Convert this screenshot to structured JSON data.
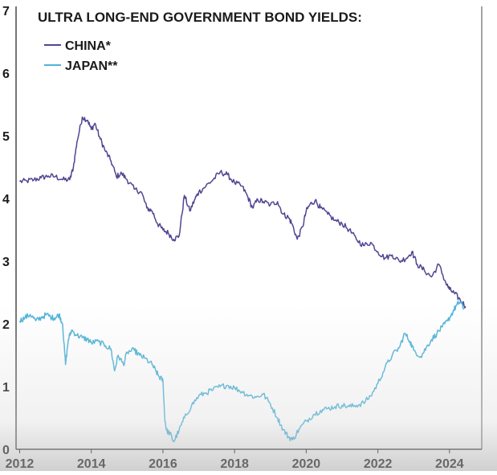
{
  "chart_data": {
    "type": "line",
    "title": "ULTRA LONG-END GOVERNMENT BOND YIELDS:",
    "xlabel": "",
    "ylabel": "",
    "xlim": [
      2011.9,
      2024.9
    ],
    "ylim": [
      0,
      7
    ],
    "x_ticks": [
      "2012",
      "2014",
      "2016",
      "2018",
      "2020",
      "2022",
      "2024"
    ],
    "y_ticks": [
      "0",
      "1",
      "2",
      "3",
      "4",
      "5",
      "6",
      "7"
    ],
    "legend_position": "top-left",
    "series": [
      {
        "name": "CHINA*",
        "color": "#4f4691",
        "points": [
          [
            2012.0,
            4.27
          ],
          [
            2012.2,
            4.28
          ],
          [
            2012.4,
            4.3
          ],
          [
            2012.6,
            4.33
          ],
          [
            2012.8,
            4.36
          ],
          [
            2013.0,
            4.35
          ],
          [
            2013.2,
            4.3
          ],
          [
            2013.4,
            4.3
          ],
          [
            2013.5,
            4.5
          ],
          [
            2013.6,
            4.9
          ],
          [
            2013.75,
            5.3
          ],
          [
            2013.9,
            5.25
          ],
          [
            2014.0,
            5.1
          ],
          [
            2014.1,
            5.2
          ],
          [
            2014.25,
            4.95
          ],
          [
            2014.4,
            4.75
          ],
          [
            2014.55,
            4.6
          ],
          [
            2014.7,
            4.35
          ],
          [
            2014.85,
            4.4
          ],
          [
            2015.0,
            4.3
          ],
          [
            2015.2,
            4.15
          ],
          [
            2015.4,
            4.1
          ],
          [
            2015.55,
            3.85
          ],
          [
            2015.7,
            3.8
          ],
          [
            2015.85,
            3.6
          ],
          [
            2016.0,
            3.5
          ],
          [
            2016.15,
            3.45
          ],
          [
            2016.3,
            3.35
          ],
          [
            2016.45,
            3.4
          ],
          [
            2016.6,
            4.05
          ],
          [
            2016.75,
            3.8
          ],
          [
            2016.9,
            4.0
          ],
          [
            2017.0,
            4.1
          ],
          [
            2017.2,
            4.2
          ],
          [
            2017.4,
            4.3
          ],
          [
            2017.6,
            4.42
          ],
          [
            2017.8,
            4.38
          ],
          [
            2018.0,
            4.25
          ],
          [
            2018.2,
            4.2
          ],
          [
            2018.35,
            4.05
          ],
          [
            2018.5,
            3.85
          ],
          [
            2018.65,
            3.98
          ],
          [
            2018.8,
            3.95
          ],
          [
            2019.0,
            3.9
          ],
          [
            2019.2,
            3.95
          ],
          [
            2019.35,
            3.75
          ],
          [
            2019.5,
            3.7
          ],
          [
            2019.6,
            3.6
          ],
          [
            2019.75,
            3.35
          ],
          [
            2019.9,
            3.55
          ],
          [
            2020.0,
            3.8
          ],
          [
            2020.1,
            3.9
          ],
          [
            2020.25,
            3.97
          ],
          [
            2020.4,
            3.85
          ],
          [
            2020.6,
            3.75
          ],
          [
            2020.8,
            3.65
          ],
          [
            2021.0,
            3.6
          ],
          [
            2021.2,
            3.5
          ],
          [
            2021.4,
            3.35
          ],
          [
            2021.6,
            3.25
          ],
          [
            2021.8,
            3.3
          ],
          [
            2022.0,
            3.15
          ],
          [
            2022.2,
            3.05
          ],
          [
            2022.4,
            3.1
          ],
          [
            2022.6,
            3.0
          ],
          [
            2022.8,
            3.05
          ],
          [
            2022.95,
            3.15
          ],
          [
            2023.1,
            2.95
          ],
          [
            2023.3,
            2.85
          ],
          [
            2023.5,
            2.75
          ],
          [
            2023.7,
            2.95
          ],
          [
            2023.9,
            2.65
          ],
          [
            2024.0,
            2.55
          ],
          [
            2024.15,
            2.48
          ],
          [
            2024.3,
            2.38
          ],
          [
            2024.45,
            2.28
          ]
        ]
      },
      {
        "name": "JAPAN**",
        "color": "#4fb3d9",
        "points": [
          [
            2012.0,
            2.05
          ],
          [
            2012.15,
            2.1
          ],
          [
            2012.3,
            2.15
          ],
          [
            2012.45,
            2.05
          ],
          [
            2012.6,
            2.1
          ],
          [
            2012.75,
            2.15
          ],
          [
            2012.9,
            2.1
          ],
          [
            2013.0,
            2.1
          ],
          [
            2013.1,
            2.15
          ],
          [
            2013.2,
            2.0
          ],
          [
            2013.28,
            1.35
          ],
          [
            2013.36,
            1.75
          ],
          [
            2013.45,
            1.9
          ],
          [
            2013.6,
            1.82
          ],
          [
            2013.75,
            1.78
          ],
          [
            2013.9,
            1.75
          ],
          [
            2014.0,
            1.7
          ],
          [
            2014.2,
            1.72
          ],
          [
            2014.4,
            1.65
          ],
          [
            2014.55,
            1.6
          ],
          [
            2014.65,
            1.25
          ],
          [
            2014.75,
            1.5
          ],
          [
            2014.9,
            1.35
          ],
          [
            2015.0,
            1.55
          ],
          [
            2015.2,
            1.58
          ],
          [
            2015.35,
            1.5
          ],
          [
            2015.5,
            1.45
          ],
          [
            2015.7,
            1.35
          ],
          [
            2015.8,
            1.25
          ],
          [
            2015.9,
            1.15
          ],
          [
            2016.0,
            1.1
          ],
          [
            2016.05,
            0.5
          ],
          [
            2016.1,
            0.3
          ],
          [
            2016.2,
            0.25
          ],
          [
            2016.3,
            0.12
          ],
          [
            2016.45,
            0.3
          ],
          [
            2016.6,
            0.5
          ],
          [
            2016.8,
            0.7
          ],
          [
            2017.0,
            0.85
          ],
          [
            2017.2,
            0.9
          ],
          [
            2017.4,
            0.95
          ],
          [
            2017.6,
            1.0
          ],
          [
            2017.8,
            1.02
          ],
          [
            2018.0,
            0.98
          ],
          [
            2018.2,
            0.92
          ],
          [
            2018.4,
            0.86
          ],
          [
            2018.6,
            0.83
          ],
          [
            2018.8,
            0.88
          ],
          [
            2019.0,
            0.72
          ],
          [
            2019.2,
            0.5
          ],
          [
            2019.35,
            0.32
          ],
          [
            2019.5,
            0.2
          ],
          [
            2019.62,
            0.15
          ],
          [
            2019.8,
            0.32
          ],
          [
            2020.0,
            0.45
          ],
          [
            2020.2,
            0.55
          ],
          [
            2020.4,
            0.62
          ],
          [
            2020.6,
            0.65
          ],
          [
            2020.8,
            0.68
          ],
          [
            2021.0,
            0.7
          ],
          [
            2021.2,
            0.68
          ],
          [
            2021.4,
            0.7
          ],
          [
            2021.6,
            0.74
          ],
          [
            2021.8,
            0.85
          ],
          [
            2022.0,
            1.05
          ],
          [
            2022.2,
            1.3
          ],
          [
            2022.4,
            1.5
          ],
          [
            2022.6,
            1.62
          ],
          [
            2022.75,
            1.85
          ],
          [
            2022.9,
            1.72
          ],
          [
            2023.0,
            1.58
          ],
          [
            2023.2,
            1.48
          ],
          [
            2023.35,
            1.62
          ],
          [
            2023.5,
            1.75
          ],
          [
            2023.65,
            1.85
          ],
          [
            2023.8,
            1.95
          ],
          [
            2023.95,
            2.05
          ],
          [
            2024.1,
            2.2
          ],
          [
            2024.2,
            2.3
          ],
          [
            2024.3,
            2.35
          ],
          [
            2024.4,
            2.25
          ]
        ]
      }
    ]
  }
}
